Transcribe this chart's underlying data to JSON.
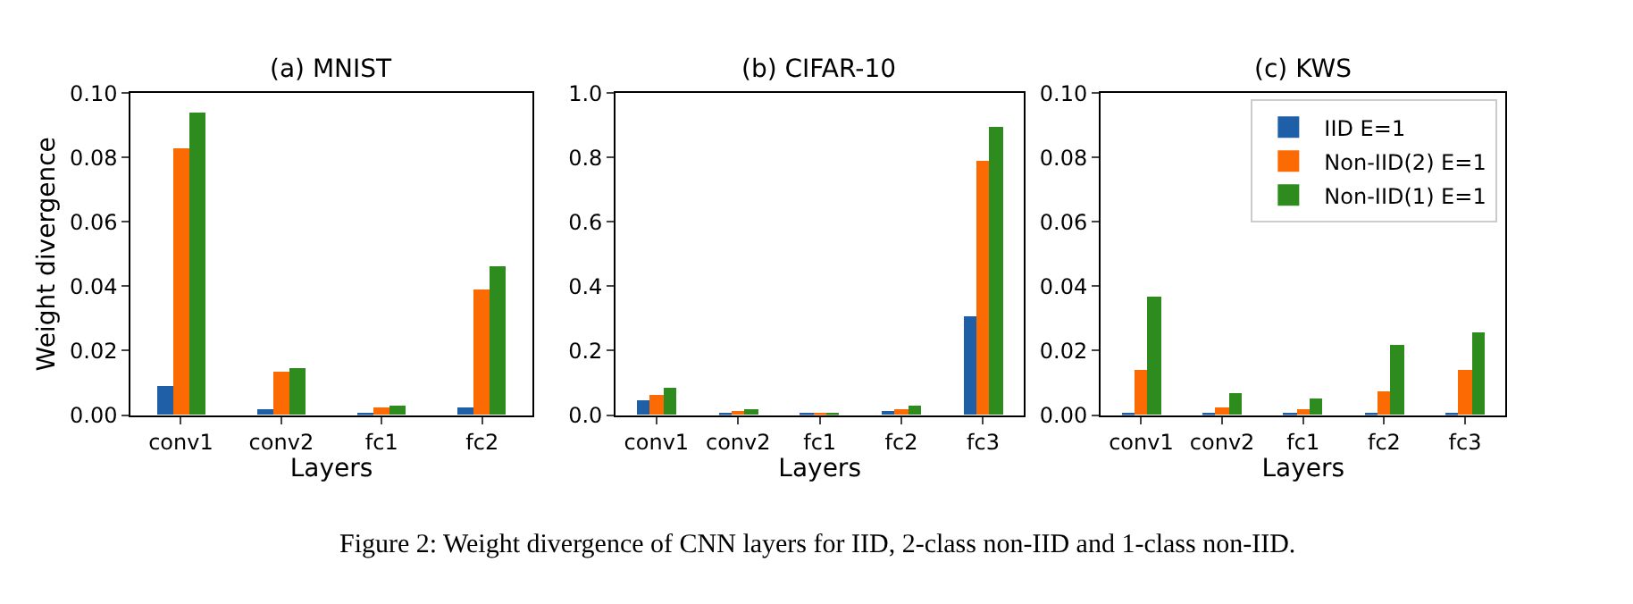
{
  "chart_data": [
    {
      "type": "bar",
      "title": "(a) MNIST",
      "xlabel": "Layers",
      "ylabel": "Weight divergence",
      "categories": [
        "conv1",
        "conv2",
        "fc1",
        "fc2"
      ],
      "ylim": [
        0,
        0.1
      ],
      "yticks": [
        {
          "value": 0,
          "label": "0.00"
        },
        {
          "value": 0.02,
          "label": "0.02"
        },
        {
          "value": 0.04,
          "label": "0.04"
        },
        {
          "value": 0.06,
          "label": "0.06"
        },
        {
          "value": 0.08,
          "label": "0.08"
        },
        {
          "value": 0.1,
          "label": "0.10"
        }
      ],
      "grid": false,
      "legend": false,
      "series": [
        {
          "color": "#1f5fa8",
          "values": [
            0.0088,
            0.0017,
            0.0003,
            0.0022
          ]
        },
        {
          "color": "#fc6a03",
          "values": [
            0.083,
            0.0133,
            0.0025,
            0.039
          ]
        },
        {
          "color": "#2e8b1e",
          "values": [
            0.0937,
            0.0148,
            0.0029,
            0.046
          ]
        }
      ],
      "annotations": [
        "Figure 2: Weight divergence of CNN layers for IID, 2-class non-IID and 1-class non-IID."
      ]
    },
    {
      "type": "bar",
      "title": "(b) CIFAR-10",
      "xlabel": "Layers",
      "categories": [
        "conv1",
        "conv2",
        "fc1",
        "fc2",
        "fc3"
      ],
      "ylim": [
        0,
        1.0
      ],
      "yticks": [
        {
          "value": 0,
          "label": "0.0"
        },
        {
          "value": 0.2,
          "label": "0.2"
        },
        {
          "value": 0.4,
          "label": "0.4"
        },
        {
          "value": 0.6,
          "label": "0.6"
        },
        {
          "value": 0.8,
          "label": "0.8"
        },
        {
          "value": 1.0,
          "label": "1.0"
        }
      ],
      "grid": false,
      "legend": false,
      "series": [
        {
          "color": "#1f5fa8",
          "values": [
            0.046,
            0.008,
            0.003,
            0.012,
            0.307
          ]
        },
        {
          "color": "#fc6a03",
          "values": [
            0.063,
            0.013,
            0.005,
            0.02,
            0.79
          ]
        },
        {
          "color": "#2e8b1e",
          "values": [
            0.083,
            0.016,
            0.007,
            0.027,
            0.893
          ]
        }
      ]
    },
    {
      "type": "bar",
      "title": "(c) KWS",
      "xlabel": "Layers",
      "categories": [
        "conv1",
        "conv2",
        "fc1",
        "fc2",
        "fc3"
      ],
      "ylim": [
        0,
        0.1
      ],
      "yticks": [
        {
          "value": 0,
          "label": "0.00"
        },
        {
          "value": 0.02,
          "label": "0.02"
        },
        {
          "value": 0.04,
          "label": "0.04"
        },
        {
          "value": 0.06,
          "label": "0.06"
        },
        {
          "value": 0.08,
          "label": "0.08"
        },
        {
          "value": 0.1,
          "label": "0.10"
        }
      ],
      "grid": false,
      "legend": "top right",
      "series": [
        {
          "name": "IID E=1",
          "color": "#1f5fa8",
          "values": [
            0.0003,
            0.0003,
            0.0003,
            0.0003,
            0.0003
          ]
        },
        {
          "name": "Non-IID(2) E=1",
          "color": "#fc6a03",
          "values": [
            0.0138,
            0.0025,
            0.0018,
            0.0072,
            0.0138
          ]
        },
        {
          "name": "Non-IID(1) E=1",
          "color": "#2e8b1e",
          "values": [
            0.0367,
            0.0066,
            0.0051,
            0.022,
            0.0258
          ]
        }
      ]
    }
  ]
}
